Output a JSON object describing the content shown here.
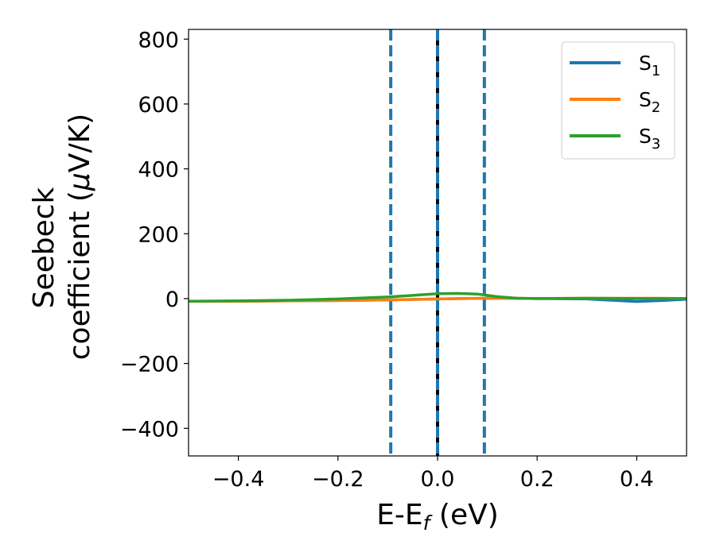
{
  "chart_data": {
    "type": "line",
    "xlabel": {
      "main": "E-E",
      "sub": "f",
      "unit": " (eV)"
    },
    "ylabel": {
      "line1": "Seebeck",
      "line2_pre": "coefficient  (",
      "line2_mu": "μ",
      "line2_post": "V/K)"
    },
    "xlim": [
      -0.5,
      0.5
    ],
    "ylim": [
      -485,
      830
    ],
    "x_ticks": [
      -0.4,
      -0.2,
      0.0,
      0.2,
      0.4
    ],
    "x_tick_labels": [
      "−0.4",
      "−0.2",
      "0.0",
      "0.2",
      "0.4"
    ],
    "y_ticks": [
      -400,
      -200,
      0,
      200,
      400,
      600,
      800
    ],
    "y_tick_labels": [
      "−400",
      "−200",
      "0",
      "200",
      "400",
      "600",
      "800"
    ],
    "grid": false,
    "legend_position": "top-right",
    "vlines": [
      {
        "x": -0.094,
        "style": "dashed",
        "color": "#1f77b4"
      },
      {
        "x": 0.0,
        "style": "solid",
        "color": "#000000"
      },
      {
        "x": 0.0,
        "style": "dashed",
        "color": "#1f77b4"
      },
      {
        "x": 0.094,
        "style": "dashed",
        "color": "#1f77b4"
      }
    ],
    "series": [
      {
        "name": "S",
        "sub": "1",
        "color": "#1f77b4",
        "x": [
          -0.5,
          -0.4,
          -0.3,
          -0.2,
          -0.1,
          0.0,
          0.05,
          0.1,
          0.15,
          0.2,
          0.3,
          0.35,
          0.4,
          0.45,
          0.5
        ],
        "y": [
          -8,
          -8,
          -7,
          -6,
          -4,
          -1,
          0,
          1,
          1,
          0,
          -1,
          -5,
          -9,
          -6,
          -2
        ]
      },
      {
        "name": "S",
        "sub": "2",
        "color": "#ff7f0e",
        "x": [
          -0.5,
          -0.4,
          -0.3,
          -0.2,
          -0.1,
          0.0,
          0.05,
          0.1,
          0.15,
          0.2,
          0.3,
          0.35,
          0.4,
          0.45,
          0.5
        ],
        "y": [
          -8,
          -8,
          -7,
          -6,
          -4,
          -1,
          0,
          1,
          1,
          0,
          1,
          1,
          1,
          1,
          0
        ]
      },
      {
        "name": "S",
        "sub": "3",
        "color": "#2ca02c",
        "x": [
          -0.5,
          -0.4,
          -0.3,
          -0.2,
          -0.1,
          -0.05,
          0.0,
          0.04,
          0.08,
          0.12,
          0.16,
          0.2,
          0.3,
          0.4,
          0.5
        ],
        "y": [
          -8,
          -7,
          -5,
          -1,
          5,
          10,
          15,
          16,
          14,
          6,
          1,
          0,
          1,
          0,
          0
        ]
      }
    ]
  }
}
